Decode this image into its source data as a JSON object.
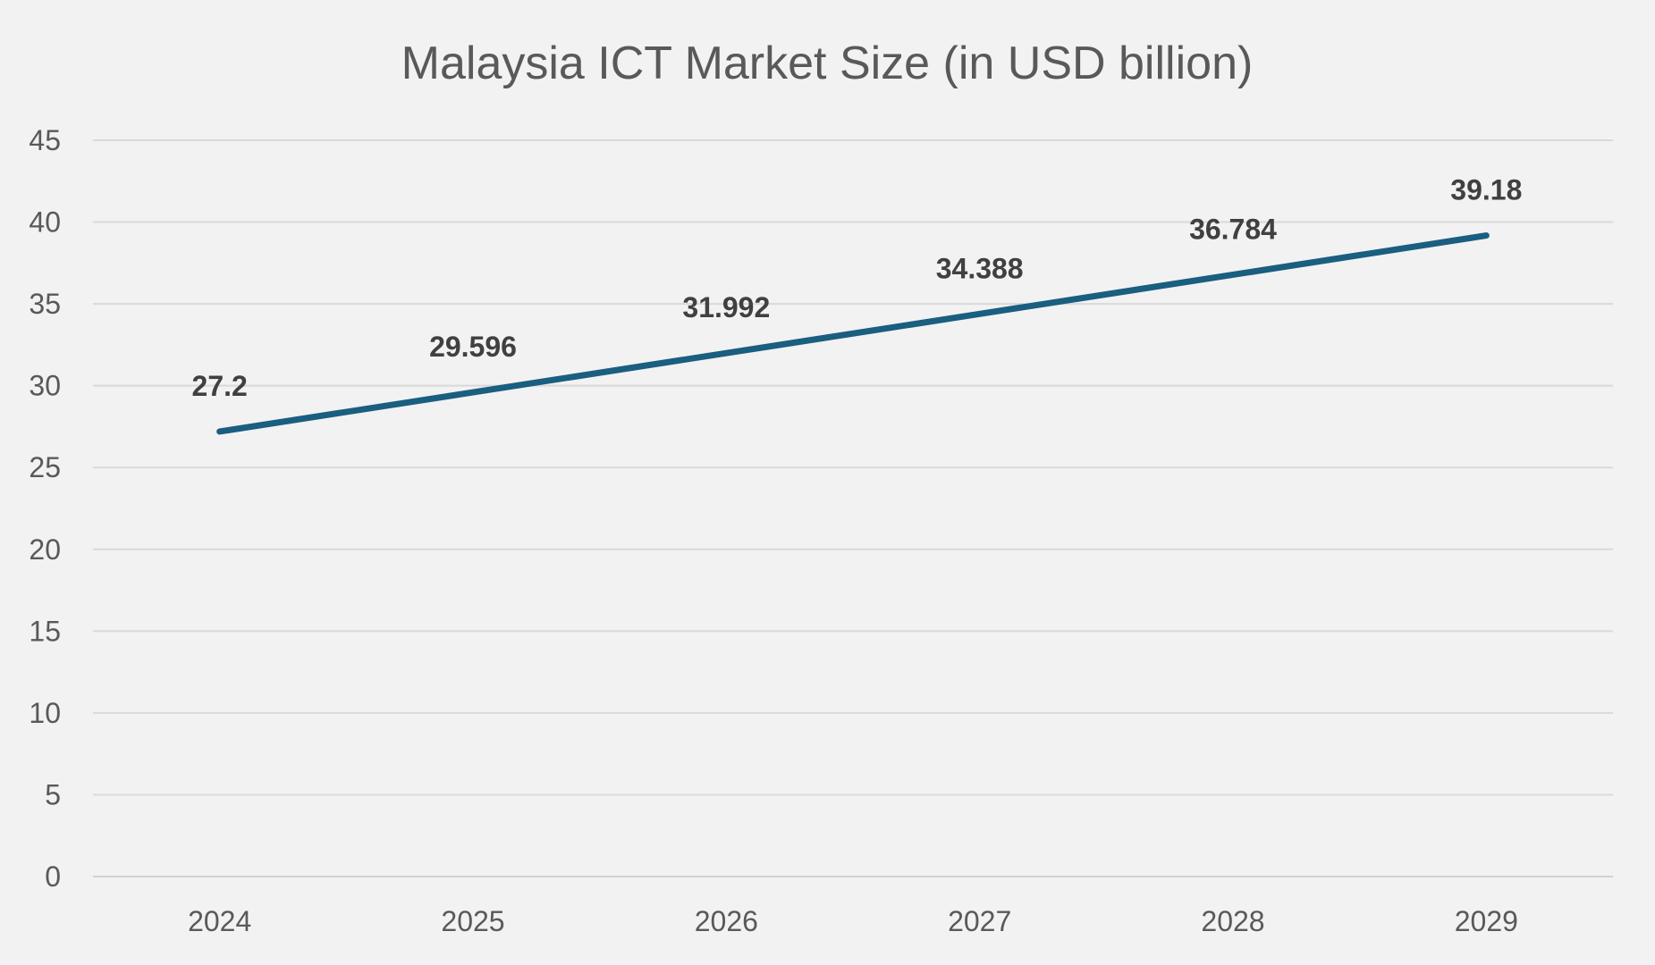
{
  "chart_data": {
    "type": "line",
    "title": "Malaysia ICT Market Size (in USD billion)",
    "xlabel": "",
    "ylabel": "",
    "categories": [
      "2024",
      "2025",
      "2026",
      "2027",
      "2028",
      "2029"
    ],
    "series": [
      {
        "values": [
          27.2,
          29.596,
          31.992,
          34.388,
          36.784,
          39.18
        ],
        "data_labels": [
          "27.2",
          "29.596",
          "31.992",
          "34.388",
          "36.784",
          "39.18"
        ],
        "color": "#1a5e80"
      }
    ],
    "ylim": [
      0,
      45
    ],
    "yticks": [
      0,
      5,
      10,
      15,
      20,
      25,
      30,
      35,
      40,
      45
    ],
    "ytick_labels": [
      "0",
      "5",
      "10",
      "15",
      "20",
      "25",
      "30",
      "35",
      "40",
      "45"
    ],
    "grid": true,
    "legend": "none"
  },
  "colors": {
    "background": "#f2f2f2",
    "gridline": "#d9d9d9",
    "title_text": "#595959",
    "tick_text": "#595959",
    "data_label_text": "#404040",
    "line": "#1a5e80"
  }
}
